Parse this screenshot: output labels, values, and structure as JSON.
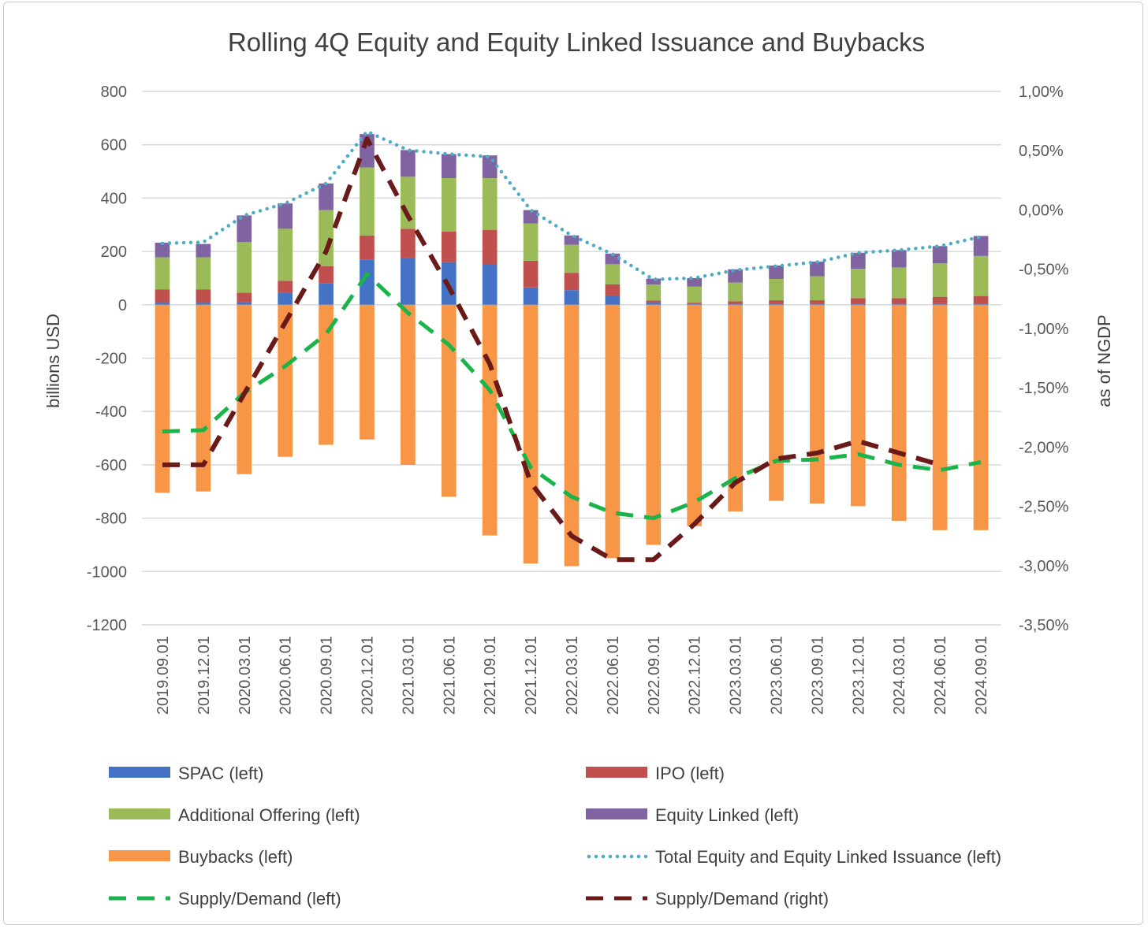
{
  "chart_data": {
    "type": "bar",
    "title": "Rolling 4Q Equity and Equity Linked Issuance and Buybacks",
    "ylabel": "billions USD",
    "ylabel_right": "as of NGDP",
    "ylim": [
      -1200,
      800
    ],
    "ylim_right": [
      -3.5,
      1.0
    ],
    "yticks": [
      "800",
      "600",
      "400",
      "200",
      "0",
      "-200",
      "-400",
      "-600",
      "-800",
      "-1000",
      "-1200"
    ],
    "yticks_right": [
      "1,00%",
      "0,50%",
      "0,00%",
      "-0,50%",
      "-1,00%",
      "-1,50%",
      "-2,00%",
      "-2,50%",
      "-3,00%",
      "-3,50%"
    ],
    "categories": [
      "2019.09.01",
      "2019.12.01",
      "2020.03.01",
      "2020.06.01",
      "2020.09.01",
      "2020.12.01",
      "2021.03.01",
      "2021.06.01",
      "2021.09.01",
      "2021.12.01",
      "2022.03.01",
      "2022.06.01",
      "2022.09.01",
      "2022.12.01",
      "2023.03.01",
      "2023.06.01",
      "2023.09.01",
      "2023.12.01",
      "2024.03.01",
      "2024.06.01",
      "2024.09.01"
    ],
    "series": [
      {
        "name": "SPAC (left)",
        "kind": "bar",
        "axis": "left",
        "color": "#4472C4",
        "values": [
          8,
          8,
          10,
          45,
          80,
          170,
          175,
          160,
          150,
          65,
          55,
          35,
          8,
          3,
          5,
          5,
          5,
          5,
          5,
          5,
          5
        ]
      },
      {
        "name": "IPO (left)",
        "kind": "bar",
        "axis": "left",
        "color": "#C0504D",
        "values": [
          50,
          50,
          35,
          45,
          65,
          90,
          110,
          115,
          130,
          100,
          65,
          42,
          8,
          5,
          8,
          12,
          12,
          20,
          20,
          25,
          28
        ]
      },
      {
        "name": "Additional Offering (left)",
        "kind": "bar",
        "axis": "left",
        "color": "#9BBB59",
        "values": [
          120,
          120,
          190,
          195,
          210,
          255,
          195,
          200,
          195,
          140,
          105,
          75,
          60,
          60,
          70,
          80,
          90,
          110,
          115,
          125,
          150
        ]
      },
      {
        "name": "Equity Linked (left)",
        "kind": "bar",
        "axis": "left",
        "color": "#8064A2",
        "values": [
          55,
          50,
          100,
          95,
          100,
          125,
          100,
          90,
          85,
          50,
          35,
          40,
          22,
          32,
          50,
          50,
          55,
          60,
          65,
          65,
          75
        ]
      },
      {
        "name": "Buybacks (left)",
        "kind": "bar",
        "axis": "left",
        "color": "#F79646",
        "values": [
          -705,
          -700,
          -635,
          -570,
          -525,
          -505,
          -600,
          -720,
          -865,
          -970,
          -980,
          -950,
          -900,
          -830,
          -775,
          -735,
          -745,
          -755,
          -810,
          -845,
          -845
        ]
      },
      {
        "name": "Total Equity and Equity Linked Issuance (left)",
        "kind": "line",
        "style": "dotted",
        "axis": "left",
        "color": "#4BACC6",
        "values": [
          230,
          235,
          335,
          380,
          455,
          650,
          580,
          565,
          555,
          355,
          260,
          190,
          95,
          100,
          130,
          145,
          160,
          195,
          205,
          220,
          255
        ]
      },
      {
        "name": "Supply/Demand (left)",
        "kind": "line",
        "style": "dashed",
        "axis": "left",
        "color": "#1BB44A",
        "values": [
          -475,
          -470,
          -330,
          -230,
          -110,
          115,
          -30,
          -150,
          -320,
          -610,
          -720,
          -780,
          -800,
          -740,
          -650,
          -585,
          -580,
          -560,
          -600,
          -620,
          -590
        ]
      },
      {
        "name": "Supply/Demand (right)",
        "kind": "line",
        "style": "dashed",
        "axis": "right",
        "color": "#6B1A1A",
        "values": [
          -2.15,
          -2.15,
          -1.55,
          -0.95,
          -0.35,
          0.6,
          -0.05,
          -0.65,
          -1.3,
          -2.3,
          -2.75,
          -2.95,
          -2.95,
          -2.65,
          -2.3,
          -2.1,
          -2.05,
          -1.95,
          -2.05,
          -2.15,
          null
        ]
      }
    ],
    "legend": [
      "SPAC (left)",
      "IPO (left)",
      "Additional Offering (left)",
      "Equity Linked (left)",
      "Buybacks (left)",
      "Total Equity and Equity Linked Issuance (left)",
      "Supply/Demand (left)",
      "Supply/Demand (right)"
    ],
    "legend_position": "bottom",
    "grid": true
  }
}
